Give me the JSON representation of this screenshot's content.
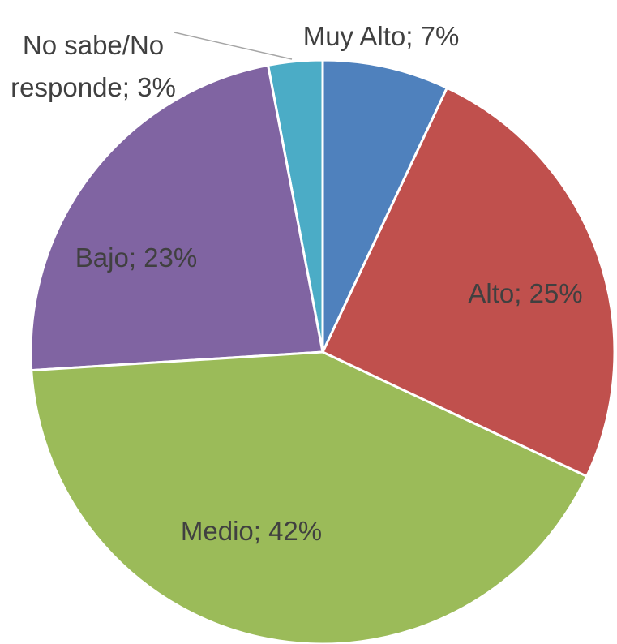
{
  "chart_data": {
    "type": "pie",
    "categories": [
      "Muy Alto",
      "Alto",
      "Medio",
      "Bajo",
      "No sabe/No responde"
    ],
    "values": [
      7,
      25,
      42,
      23,
      3
    ],
    "value_labels": [
      "Muy Alto; 7%",
      "Alto; 25%",
      "Medio; 42%",
      "Bajo; 23%",
      "No sabe/No responde; 3%"
    ],
    "colors": [
      "#4f81bd",
      "#c0504d",
      "#9bbb59",
      "#8064a2",
      "#4bacc6"
    ]
  }
}
